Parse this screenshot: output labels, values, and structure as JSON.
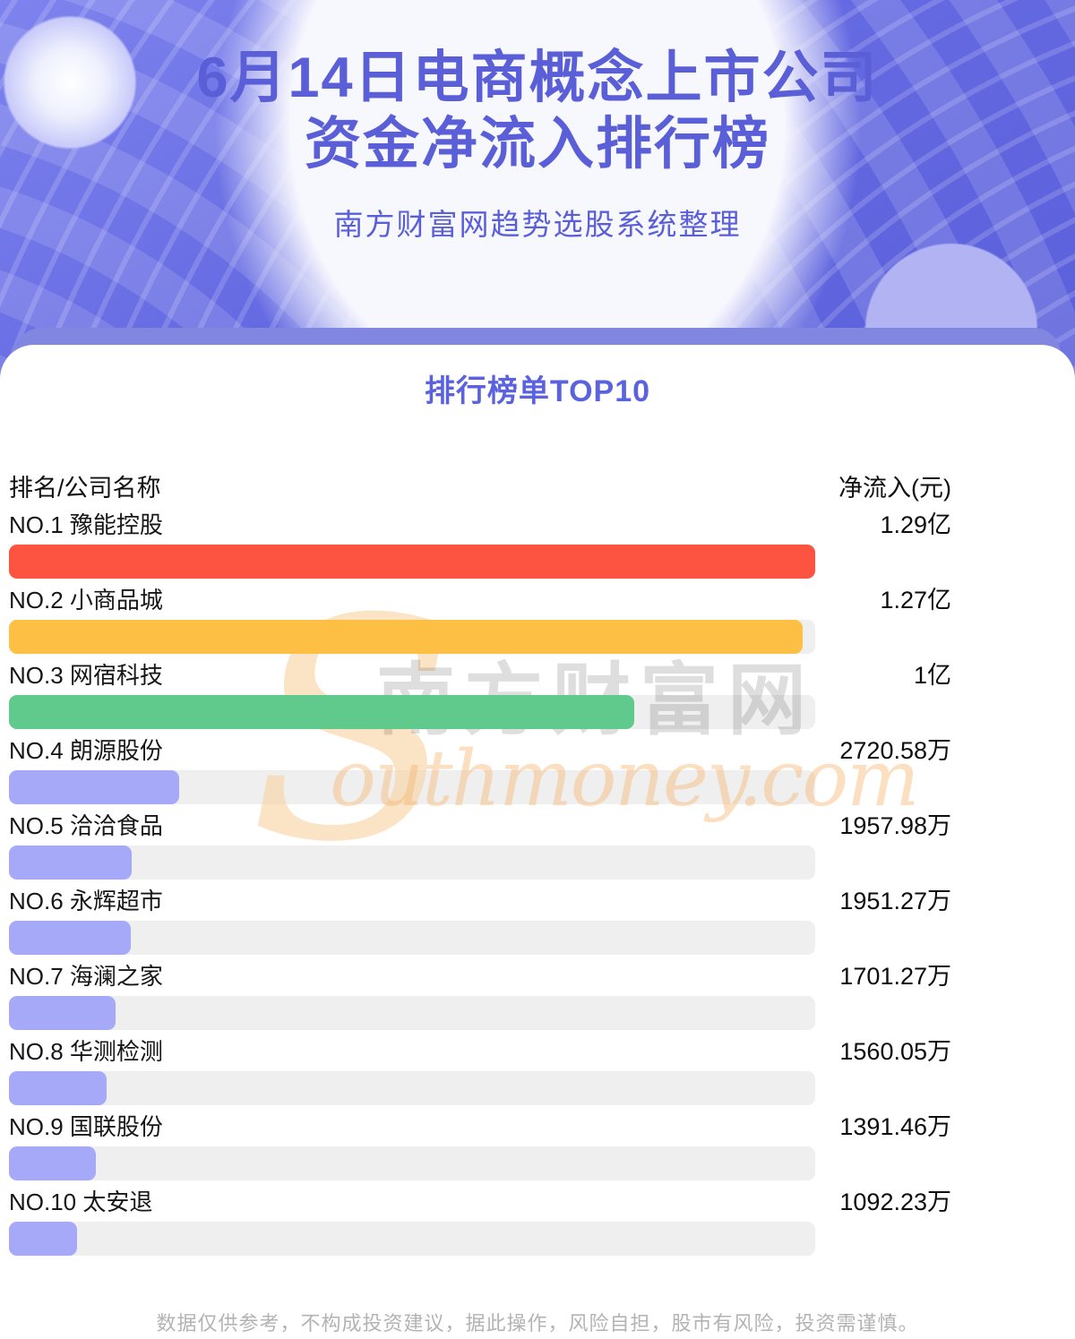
{
  "header": {
    "title_line1": "6月14日电商概念上市公司",
    "title_line2": "资金净流入排行榜",
    "subtitle": "南方财富网趋势选股系统整理"
  },
  "ranking": {
    "section_title": "排行榜单TOP10",
    "col_left": "排名/公司名称",
    "col_right": "净流入(元)",
    "rows": [
      {
        "rank": "NO.1",
        "name": "豫能控股",
        "value": "1.29亿",
        "value_wan": 12900,
        "color": "#fc5440"
      },
      {
        "rank": "NO.2",
        "name": "小商品城",
        "value": "1.27亿",
        "value_wan": 12700,
        "color": "#fdc044"
      },
      {
        "rank": "NO.3",
        "name": "网宿科技",
        "value": "1亿",
        "value_wan": 10000,
        "color": "#5fca8c"
      },
      {
        "rank": "NO.4",
        "name": "朗源股份",
        "value": "2720.58万",
        "value_wan": 2720.58,
        "color": "#a6a9f7"
      },
      {
        "rank": "NO.5",
        "name": "洽洽食品",
        "value": "1957.98万",
        "value_wan": 1957.98,
        "color": "#a6a9f7"
      },
      {
        "rank": "NO.6",
        "name": "永辉超市",
        "value": "1951.27万",
        "value_wan": 1951.27,
        "color": "#a6a9f7"
      },
      {
        "rank": "NO.7",
        "name": "海澜之家",
        "value": "1701.27万",
        "value_wan": 1701.27,
        "color": "#a6a9f7"
      },
      {
        "rank": "NO.8",
        "name": "华测检测",
        "value": "1560.05万",
        "value_wan": 1560.05,
        "color": "#a6a9f7"
      },
      {
        "rank": "NO.9",
        "name": "国联股份",
        "value": "1391.46万",
        "value_wan": 1391.46,
        "color": "#a6a9f7"
      },
      {
        "rank": "NO.10",
        "name": "太安退",
        "value": "1092.23万",
        "value_wan": 1092.23,
        "color": "#a6a9f7"
      }
    ]
  },
  "watermark": {
    "s": "S",
    "cn": "南方财富网",
    "en": "outhmoney.com"
  },
  "footer": {
    "disclaimer": "数据仅供参考，不构成投资建议，据此操作，风险自担，股市有风险，投资需谨慎。"
  },
  "colors": {
    "accent_purple": "#5a5fd8",
    "band_purple": "#8186e0",
    "bar_track": "#efefef",
    "bar_red": "#fc5440",
    "bar_orange": "#fdc044",
    "bar_green": "#5fca8c",
    "bar_light_purple": "#a6a9f7"
  },
  "chart_data": {
    "type": "bar",
    "orientation": "horizontal",
    "title": "6月14日电商概念上市公司资金净流入排行榜",
    "subtitle": "南方财富网趋势选股系统整理",
    "section_title": "排行榜单TOP10",
    "xlabel": "净流入(元)",
    "ylabel": "排名/公司名称",
    "categories": [
      "豫能控股",
      "小商品城",
      "网宿科技",
      "朗源股份",
      "洽洽食品",
      "永辉超市",
      "海澜之家",
      "华测检测",
      "国联股份",
      "太安退"
    ],
    "values_wan": [
      12900,
      12700,
      10000,
      2720.58,
      1957.98,
      1951.27,
      1701.27,
      1560.05,
      1391.46,
      1092.23
    ],
    "value_labels": [
      "1.29亿",
      "1.27亿",
      "1亿",
      "2720.58万",
      "1957.98万",
      "1951.27万",
      "1701.27万",
      "1560.05万",
      "1391.46万",
      "1092.23万"
    ],
    "unit": "万元",
    "xlim": [
      0,
      12900
    ],
    "grid": false,
    "legend": false
  }
}
